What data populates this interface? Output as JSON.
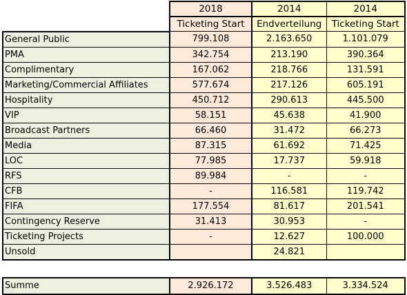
{
  "headers": {
    "col1": {
      "year": "2018",
      "sub": "Ticketing Start"
    },
    "col2": {
      "year": "2014",
      "sub": "Endverteilung"
    },
    "col3": {
      "year": "2014",
      "sub": "Ticketing Start"
    }
  },
  "rows": [
    {
      "label": "General Public",
      "v2018": "799.108",
      "v2014end": "2.163.650",
      "v2014start": "1.101.079"
    },
    {
      "label": "PMA",
      "v2018": "342.754",
      "v2014end": "213.190",
      "v2014start": "390.364"
    },
    {
      "label": "Complimentary",
      "v2018": "167.062",
      "v2014end": "218.766",
      "v2014start": "131.591"
    },
    {
      "label": "Marketing/Commercial Affiliates",
      "v2018": "577.674",
      "v2014end": "217.126",
      "v2014start": "605.191"
    },
    {
      "label": "Hospitality",
      "v2018": "450.712",
      "v2014end": "290.613",
      "v2014start": "445.500"
    },
    {
      "label": "VIP",
      "v2018": "58.151",
      "v2014end": "45.638",
      "v2014start": "41.900"
    },
    {
      "label": "Broadcast Partners",
      "v2018": "66.460",
      "v2014end": "31.472",
      "v2014start": "66.273"
    },
    {
      "label": "Media",
      "v2018": "87.315",
      "v2014end": "61.692",
      "v2014start": "71.425"
    },
    {
      "label": "LOC",
      "v2018": "77.985",
      "v2014end": "17.737",
      "v2014start": "59.918"
    },
    {
      "label": "RFS",
      "v2018": "89.984",
      "v2014end": "-",
      "v2014start": "-"
    },
    {
      "label": "CFB",
      "v2018": "-",
      "v2014end": "116.581",
      "v2014start": "119.742"
    },
    {
      "label": "FIFA",
      "v2018": "177.554",
      "v2014end": "81.617",
      "v2014start": "201.541"
    },
    {
      "label": "Contingency Reserve",
      "v2018": "31.413",
      "v2014end": "30.953",
      "v2014start": "-"
    },
    {
      "label": "Ticketing Projects",
      "v2018": "-",
      "v2014end": "12.627",
      "v2014start": "100.000"
    },
    {
      "label": "Unsold",
      "v2018": "",
      "v2014end": "24.821",
      "v2014start": ""
    }
  ],
  "summe": {
    "label": "Summe",
    "v2018": "2.926.172",
    "v2014end": "3.526.483",
    "v2014start": "3.334.524"
  }
}
